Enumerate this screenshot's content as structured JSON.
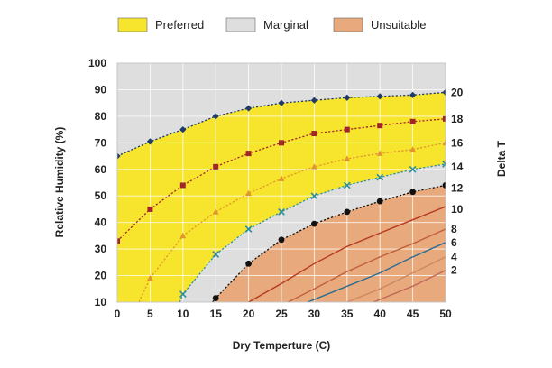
{
  "chart_data": {
    "type": "line",
    "xlabel": "Dry Temperture (C)",
    "ylabel": "Relative Humidity (%)",
    "y2label": "Delta T",
    "xlim": [
      0,
      50
    ],
    "ylim": [
      10,
      100
    ],
    "x_ticks": [
      0,
      5,
      10,
      15,
      20,
      25,
      30,
      35,
      40,
      45,
      50
    ],
    "y_ticks": [
      10,
      20,
      30,
      40,
      50,
      60,
      70,
      80,
      90,
      100
    ],
    "grid": true,
    "legend_position": "top",
    "legend": [
      {
        "label": "Preferred",
        "color": "#f7e42c"
      },
      {
        "label": "Marginal",
        "color": "#dedede"
      },
      {
        "label": "Unsuitable",
        "color": "#e8a97c"
      }
    ],
    "zones": {
      "marginal_upper_boundary": "20",
      "preferred_lower_boundary": "14",
      "unsuitable_upper_boundary": "12"
    },
    "series": [
      {
        "name": "20",
        "color": "#1f3a6b",
        "marker": "diamond",
        "x": [
          0,
          5,
          10,
          15,
          20,
          25,
          30,
          35,
          40,
          45,
          50
        ],
        "y": [
          65,
          70.5,
          75,
          80,
          83,
          85,
          86,
          87,
          87.5,
          88,
          89
        ]
      },
      {
        "name": "18",
        "color": "#a0262a",
        "marker": "square",
        "x": [
          0,
          5,
          10,
          15,
          20,
          25,
          30,
          35,
          40,
          45,
          50
        ],
        "y": [
          33,
          45,
          54,
          61,
          66,
          70,
          73.5,
          75,
          76.5,
          78,
          79
        ]
      },
      {
        "name": "16",
        "color": "#e0952e",
        "marker": "triangle",
        "x": [
          3.3,
          5,
          10,
          15,
          20,
          25,
          30,
          35,
          40,
          45,
          50
        ],
        "y": [
          10,
          19,
          35,
          44,
          51,
          56.5,
          61,
          64,
          66,
          67.5,
          70
        ]
      },
      {
        "name": "14",
        "color": "#2a8f9c",
        "marker": "x",
        "x": [
          9.5,
          10,
          15,
          20,
          25,
          30,
          35,
          40,
          45,
          50
        ],
        "y": [
          10,
          13,
          28,
          37.5,
          44,
          50,
          54,
          57,
          60,
          62
        ]
      },
      {
        "name": "12",
        "color": "#111111",
        "marker": "circle",
        "x": [
          14.5,
          15,
          20,
          25,
          30,
          35,
          40,
          45,
          50
        ],
        "y": [
          10,
          11.5,
          24.5,
          33.5,
          39.5,
          44,
          48,
          51.5,
          54
        ]
      },
      {
        "name": "10",
        "color": "#b53a1f",
        "marker": "none",
        "x": [
          20,
          25,
          30,
          35,
          40,
          45,
          50
        ],
        "y": [
          10,
          17,
          24.5,
          31,
          36,
          41,
          46
        ]
      },
      {
        "name": "8",
        "color": "#c0603a",
        "marker": "none",
        "x": [
          26,
          30,
          35,
          40,
          45,
          50
        ],
        "y": [
          10,
          15,
          21.5,
          27,
          32,
          37.5
        ]
      },
      {
        "name": "6",
        "color": "#2b6c8f",
        "marker": "none",
        "x": [
          29,
          35,
          40,
          45,
          50
        ],
        "y": [
          10,
          16,
          21,
          27,
          32.5
        ]
      },
      {
        "name": "4",
        "color": "#d08860",
        "marker": "none",
        "x": [
          35,
          40,
          45,
          50
        ],
        "y": [
          10,
          15,
          21,
          27
        ]
      },
      {
        "name": "2",
        "color": "#c06a55",
        "marker": "none",
        "x": [
          39,
          45,
          50
        ],
        "y": [
          10,
          16,
          22
        ]
      }
    ],
    "delta_t_labels": [
      {
        "text": "20",
        "y": 89
      },
      {
        "text": "18",
        "y": 79
      },
      {
        "text": "16",
        "y": 70
      },
      {
        "text": "14",
        "y": 61
      },
      {
        "text": "12",
        "y": 53
      },
      {
        "text": "10",
        "y": 45
      },
      {
        "text": "8",
        "y": 37.5
      },
      {
        "text": "6",
        "y": 32.5
      },
      {
        "text": "4",
        "y": 27
      },
      {
        "text": "2",
        "y": 22
      }
    ]
  }
}
